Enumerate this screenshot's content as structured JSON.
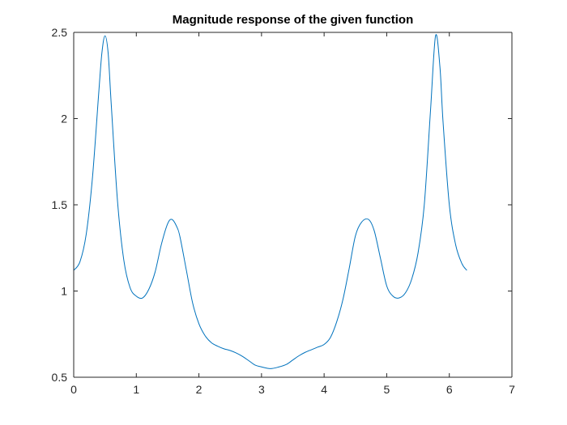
{
  "chart_data": {
    "type": "line",
    "title": "Magnitude response of the given function",
    "xlabel": "",
    "ylabel": "",
    "xlim": [
      0,
      7
    ],
    "ylim": [
      0.5,
      2.5
    ],
    "x_ticks": [
      0,
      1,
      2,
      3,
      4,
      5,
      6,
      7
    ],
    "y_ticks": [
      0.5,
      1,
      1.5,
      2,
      2.5
    ],
    "x_tick_labels": [
      "0",
      "1",
      "2",
      "3",
      "4",
      "5",
      "6",
      "7"
    ],
    "y_tick_labels": [
      "0.5",
      "1",
      "1.5",
      "2",
      "2.5"
    ],
    "grid": false,
    "legend": "none",
    "line_color": "#0072BD",
    "axis_color": "#262626",
    "series": [
      {
        "x": [
          0,
          0.1,
          0.2,
          0.3,
          0.4,
          0.45,
          0.5,
          0.55,
          0.6,
          0.7,
          0.8,
          0.9,
          1.0,
          1.1,
          1.2,
          1.3,
          1.4,
          1.5,
          1.57,
          1.65,
          1.7,
          1.8,
          1.9,
          2.0,
          2.1,
          2.2,
          2.3,
          2.4,
          2.5,
          2.6,
          2.7,
          2.8,
          2.9,
          3.0,
          3.1416,
          3.28,
          3.4,
          3.5,
          3.6,
          3.7,
          3.8,
          3.9,
          4.0,
          4.1,
          4.2,
          4.3,
          4.4,
          4.5,
          4.6,
          4.71,
          4.8,
          4.9,
          5.0,
          5.1,
          5.2,
          5.3,
          5.4,
          5.5,
          5.6,
          5.7,
          5.78,
          5.85,
          5.9,
          6.0,
          6.1,
          6.2,
          6.28
        ],
        "values": [
          1.12,
          1.17,
          1.33,
          1.66,
          2.15,
          2.38,
          2.48,
          2.38,
          2.08,
          1.52,
          1.18,
          1.02,
          0.97,
          0.96,
          1.01,
          1.11,
          1.27,
          1.39,
          1.415,
          1.37,
          1.31,
          1.12,
          0.93,
          0.81,
          0.74,
          0.7,
          0.68,
          0.665,
          0.655,
          0.64,
          0.62,
          0.595,
          0.57,
          0.56,
          0.55,
          0.56,
          0.575,
          0.6,
          0.625,
          0.645,
          0.66,
          0.675,
          0.69,
          0.73,
          0.82,
          0.95,
          1.13,
          1.32,
          1.4,
          1.415,
          1.35,
          1.19,
          1.03,
          0.97,
          0.96,
          0.99,
          1.07,
          1.22,
          1.5,
          2.05,
          2.48,
          2.3,
          1.98,
          1.5,
          1.27,
          1.16,
          1.12
        ]
      }
    ]
  }
}
